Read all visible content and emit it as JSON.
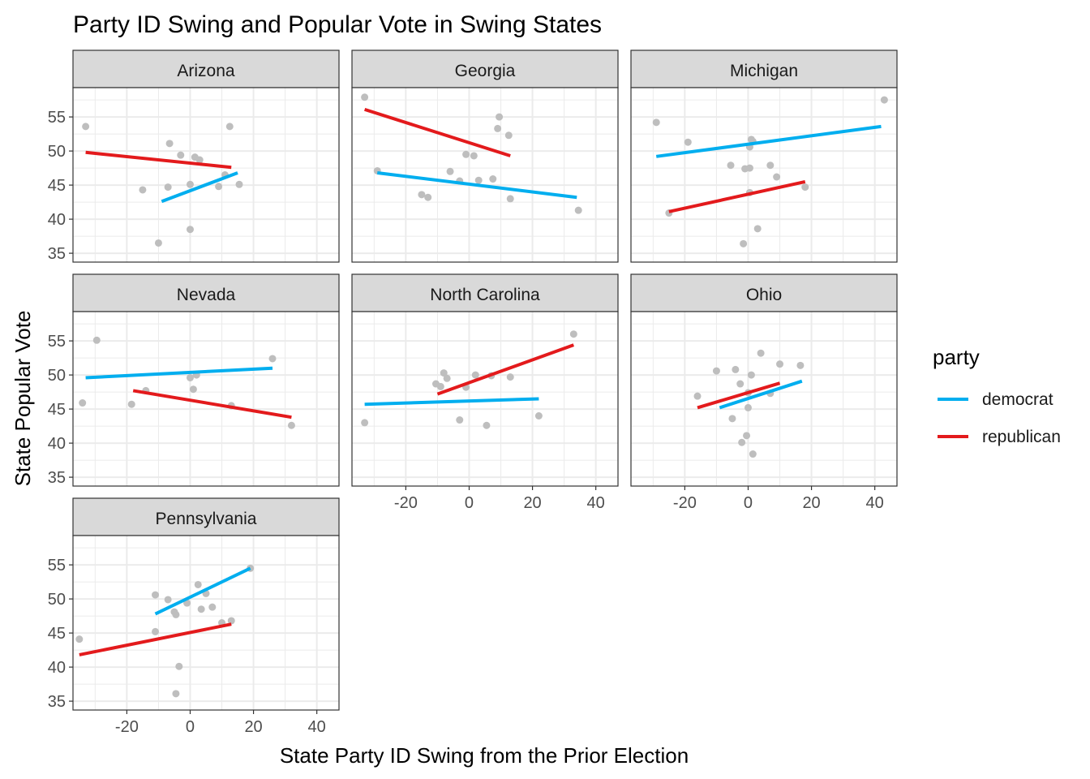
{
  "title": "Party ID Swing and Popular Vote in Swing States",
  "colors": {
    "democrat": "#00AEEF",
    "republican": "#E31A1C",
    "points": "#BEBEBE",
    "strip_bg": "#D9D9D9",
    "grid": "#EBEBEB",
    "border": "#333333",
    "axis_text": "#4D4D4D"
  },
  "chart_data": {
    "type": "scatter",
    "facet_by": "state",
    "xlabel": "State Party ID Swing from the Prior Election",
    "ylabel": "State Popular Vote",
    "xlim": [
      -37,
      47
    ],
    "ylim": [
      33.7,
      59.3
    ],
    "x_ticks": [
      -20,
      0,
      20,
      40
    ],
    "y_ticks": [
      35,
      40,
      45,
      50,
      55
    ],
    "grid": true,
    "legend": {
      "title": "party",
      "placement": "right",
      "entries": [
        {
          "key": "democrat",
          "label": "democrat"
        },
        {
          "key": "republican",
          "label": "republican"
        }
      ]
    },
    "facets": [
      {
        "state": "Arizona",
        "points": [
          [
            -33,
            53.6
          ],
          [
            -15,
            44.3
          ],
          [
            -10,
            36.5
          ],
          [
            -7,
            44.7
          ],
          [
            -6.5,
            51.1
          ],
          [
            -3,
            49.4
          ],
          [
            0,
            45.1
          ],
          [
            0,
            38.5
          ],
          [
            1.5,
            49.1
          ],
          [
            3,
            48.7
          ],
          [
            9,
            44.8
          ],
          [
            11,
            46.5
          ],
          [
            12.5,
            53.6
          ],
          [
            15.5,
            45.1
          ]
        ],
        "lines": {
          "democrat": [
            [
              -9,
              42.6
            ],
            [
              15,
              46.8
            ]
          ],
          "republican": [
            [
              -33,
              49.8
            ],
            [
              13,
              47.6
            ]
          ]
        }
      },
      {
        "state": "Georgia",
        "points": [
          [
            -33,
            57.9
          ],
          [
            -29,
            47.1
          ],
          [
            -15,
            43.6
          ],
          [
            -13,
            43.2
          ],
          [
            -6,
            47
          ],
          [
            -3,
            45.6
          ],
          [
            -1,
            49.5
          ],
          [
            1.5,
            49.3
          ],
          [
            3,
            45.7
          ],
          [
            7.5,
            45.9
          ],
          [
            9,
            53.3
          ],
          [
            9.5,
            55
          ],
          [
            12.5,
            52.3
          ],
          [
            13,
            43
          ],
          [
            34.5,
            41.3
          ]
        ],
        "lines": {
          "democrat": [
            [
              -29,
              46.8
            ],
            [
              34,
              43.2
            ]
          ],
          "republican": [
            [
              -33,
              56.1
            ],
            [
              13,
              49.3
            ]
          ]
        }
      },
      {
        "state": "Michigan",
        "points": [
          [
            -29,
            54.2
          ],
          [
            -25,
            40.9
          ],
          [
            -19,
            51.3
          ],
          [
            -5.5,
            47.9
          ],
          [
            -1.5,
            36.4
          ],
          [
            -1,
            47.4
          ],
          [
            0.5,
            47.5
          ],
          [
            0.5,
            43.9
          ],
          [
            0.5,
            50.6
          ],
          [
            1.5,
            51.4
          ],
          [
            1,
            51.7
          ],
          [
            3,
            38.6
          ],
          [
            7,
            47.9
          ],
          [
            9,
            46.2
          ],
          [
            18,
            44.7
          ],
          [
            43,
            57.5
          ]
        ],
        "lines": {
          "democrat": [
            [
              -29,
              49.2
            ],
            [
              42,
              53.6
            ]
          ],
          "republican": [
            [
              -25,
              41.1
            ],
            [
              18,
              45.5
            ]
          ]
        }
      },
      {
        "state": "Nevada",
        "points": [
          [
            -34,
            45.9
          ],
          [
            -29.5,
            55.1
          ],
          [
            -18.5,
            45.7
          ],
          [
            -14,
            47.7
          ],
          [
            0,
            49.6
          ],
          [
            1,
            47.9
          ],
          [
            2,
            50
          ],
          [
            13,
            45.5
          ],
          [
            26,
            52.4
          ],
          [
            32,
            42.6
          ]
        ],
        "lines": {
          "democrat": [
            [
              -33,
              49.6
            ],
            [
              26,
              51
            ]
          ],
          "republican": [
            [
              -18,
              47.7
            ],
            [
              32,
              43.8
            ]
          ]
        }
      },
      {
        "state": "North Carolina",
        "points": [
          [
            -33,
            43
          ],
          [
            -10.5,
            48.7
          ],
          [
            -9,
            48.3
          ],
          [
            -8,
            50.3
          ],
          [
            -7,
            49.5
          ],
          [
            -3,
            43.4
          ],
          [
            -1,
            48.2
          ],
          [
            2,
            50
          ],
          [
            5.5,
            42.6
          ],
          [
            7,
            49.9
          ],
          [
            13,
            49.7
          ],
          [
            22,
            44
          ],
          [
            33,
            56
          ]
        ],
        "lines": {
          "democrat": [
            [
              -33,
              45.7
            ],
            [
              22,
              46.5
            ]
          ],
          "republican": [
            [
              -10,
              47.2
            ],
            [
              33,
              54.4
            ]
          ]
        }
      },
      {
        "state": "Ohio",
        "points": [
          [
            -16,
            46.9
          ],
          [
            -10,
            50.6
          ],
          [
            -5,
            43.6
          ],
          [
            -4,
            50.8
          ],
          [
            -2.5,
            48.7
          ],
          [
            -2,
            40.1
          ],
          [
            -0.5,
            41.1
          ],
          [
            0,
            45.2
          ],
          [
            0,
            47.4
          ],
          [
            1,
            50
          ],
          [
            1.5,
            38.4
          ],
          [
            4,
            53.2
          ],
          [
            7,
            47.3
          ],
          [
            10,
            51.6
          ],
          [
            16.5,
            51.4
          ]
        ],
        "lines": {
          "democrat": [
            [
              -9,
              45.2
            ],
            [
              17,
              49.1
            ]
          ],
          "republican": [
            [
              -16,
              45.2
            ],
            [
              10,
              48.8
            ]
          ]
        }
      },
      {
        "state": "Pennsylvania",
        "points": [
          [
            -35,
            44.1
          ],
          [
            -11,
            50.6
          ],
          [
            -11,
            45.2
          ],
          [
            -7,
            49.9
          ],
          [
            -5,
            48.1
          ],
          [
            -4.5,
            47.7
          ],
          [
            -3.5,
            40.1
          ],
          [
            -4.5,
            36.1
          ],
          [
            -1,
            49.4
          ],
          [
            2.5,
            52.1
          ],
          [
            3.5,
            48.5
          ],
          [
            5,
            50.8
          ],
          [
            7,
            48.8
          ],
          [
            10,
            46.5
          ],
          [
            13,
            46.8
          ],
          [
            19,
            54.5
          ]
        ],
        "lines": {
          "democrat": [
            [
              -11,
              47.8
            ],
            [
              19,
              54.5
            ]
          ],
          "republican": [
            [
              -35,
              41.8
            ],
            [
              13,
              46.3
            ]
          ]
        }
      }
    ]
  }
}
